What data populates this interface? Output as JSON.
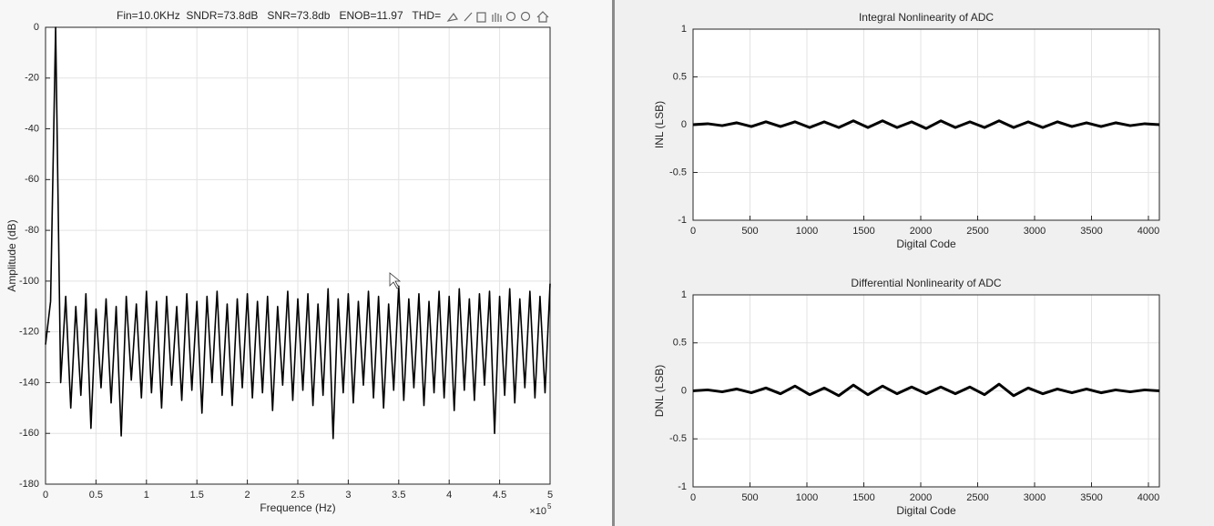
{
  "chart_data": [
    {
      "type": "line",
      "title": "Fin=10.0KHz  SNDR=73.8dB   SNR=73.8db   ENOB=11.97   THD=",
      "x_label": "Frequence (Hz)",
      "y_label": "Amplitude (dB)",
      "x_multiplier": "×10",
      "x_multiplier_exponent": "5",
      "xlim": [
        0,
        500000
      ],
      "xticks": [
        0,
        {
          "value": 50000,
          "label": "0.5"
        },
        {
          "value": 100000,
          "label": "1"
        },
        {
          "value": 150000,
          "label": "1.5"
        },
        {
          "value": 200000,
          "label": "2"
        },
        {
          "value": 250000,
          "label": "2.5"
        },
        {
          "value": 300000,
          "label": "3"
        },
        {
          "value": 350000,
          "label": "3.5"
        },
        {
          "value": 400000,
          "label": "4"
        },
        {
          "value": 450000,
          "label": "4.5"
        },
        {
          "value": 500000,
          "label": "5"
        }
      ],
      "ylim": [
        -180,
        0
      ],
      "yticks": [
        -180,
        -160,
        -140,
        -120,
        -100,
        -80,
        -60,
        -40,
        -20,
        0
      ],
      "grid": true,
      "color": "#000000",
      "x": [
        0,
        5000,
        10000,
        15000,
        20000,
        25000,
        30000,
        35000,
        40000,
        45000,
        50000,
        55000,
        60000,
        65000,
        70000,
        75000,
        80000,
        85000,
        90000,
        95000,
        100000,
        105000,
        110000,
        115000,
        120000,
        125000,
        130000,
        135000,
        140000,
        145000,
        150000,
        155000,
        160000,
        165000,
        170000,
        175000,
        180000,
        185000,
        190000,
        195000,
        200000,
        205000,
        210000,
        215000,
        220000,
        225000,
        230000,
        235000,
        240000,
        245000,
        250000,
        255000,
        260000,
        265000,
        270000,
        275000,
        280000,
        285000,
        290000,
        295000,
        300000,
        305000,
        310000,
        315000,
        320000,
        325000,
        330000,
        335000,
        340000,
        345000,
        350000,
        355000,
        360000,
        365000,
        370000,
        375000,
        380000,
        385000,
        390000,
        395000,
        400000,
        405000,
        410000,
        415000,
        420000,
        425000,
        430000,
        435000,
        440000,
        445000,
        450000,
        455000,
        460000,
        465000,
        470000,
        475000,
        480000,
        485000,
        490000,
        495000,
        500000
      ],
      "values": [
        -125,
        -108,
        0,
        -140,
        -106,
        -150,
        -110,
        -145,
        -105,
        -158,
        -111,
        -142,
        -107,
        -148,
        -110,
        -161,
        -106,
        -139,
        -109,
        -146,
        -104,
        -144,
        -108,
        -150,
        -106,
        -141,
        -110,
        -147,
        -105,
        -143,
        -108,
        -152,
        -106,
        -140,
        -104,
        -145,
        -109,
        -149,
        -107,
        -142,
        -105,
        -146,
        -108,
        -144,
        -106,
        -151,
        -110,
        -141,
        -104,
        -147,
        -107,
        -143,
        -105,
        -149,
        -109,
        -145,
        -103,
        -162,
        -107,
        -144,
        -105,
        -148,
        -108,
        -141,
        -104,
        -146,
        -106,
        -150,
        -109,
        -143,
        -102,
        -147,
        -107,
        -142,
        -105,
        -149,
        -108,
        -144,
        -104,
        -146,
        -106,
        -151,
        -103,
        -143,
        -107,
        -147,
        -105,
        -141,
        -104,
        -160,
        -106,
        -145,
        -103,
        -148,
        -107,
        -142,
        -104,
        -146,
        -106,
        -144,
        -101
      ]
    },
    {
      "type": "line",
      "title": "Integral Nonlinearity of ADC",
      "x_label": "Digital Code",
      "y_label": "INL (LSB)",
      "xlim": [
        0,
        4096
      ],
      "xticks": [
        0,
        500,
        1000,
        1500,
        2000,
        2500,
        3000,
        3500,
        4000
      ],
      "ylim": [
        -1,
        1
      ],
      "yticks": [
        -1,
        -0.5,
        0,
        0.5,
        1
      ],
      "grid": true,
      "color": "#000000",
      "x": [
        0,
        128,
        256,
        384,
        512,
        640,
        768,
        896,
        1024,
        1152,
        1280,
        1408,
        1536,
        1664,
        1792,
        1920,
        2048,
        2176,
        2304,
        2432,
        2560,
        2688,
        2816,
        2944,
        3072,
        3200,
        3328,
        3456,
        3584,
        3712,
        3840,
        3968,
        4096
      ],
      "values": [
        0,
        0.01,
        -0.01,
        0.02,
        -0.02,
        0.03,
        -0.02,
        0.03,
        -0.03,
        0.03,
        -0.03,
        0.04,
        -0.03,
        0.04,
        -0.03,
        0.03,
        -0.04,
        0.04,
        -0.03,
        0.03,
        -0.03,
        0.04,
        -0.03,
        0.03,
        -0.03,
        0.03,
        -0.02,
        0.02,
        -0.02,
        0.02,
        -0.01,
        0.01,
        0
      ]
    },
    {
      "type": "line",
      "title": "Differential Nonlinearity of ADC",
      "x_label": "Digital Code",
      "y_label": "DNL (LSB)",
      "xlim": [
        0,
        4096
      ],
      "xticks": [
        0,
        500,
        1000,
        1500,
        2000,
        2500,
        3000,
        3500,
        4000
      ],
      "ylim": [
        -1,
        1
      ],
      "yticks": [
        -1,
        -0.5,
        0,
        0.5,
        1
      ],
      "grid": true,
      "color": "#000000",
      "x": [
        0,
        128,
        256,
        384,
        512,
        640,
        768,
        896,
        1024,
        1152,
        1280,
        1408,
        1536,
        1664,
        1792,
        1920,
        2048,
        2176,
        2304,
        2432,
        2560,
        2688,
        2816,
        2944,
        3072,
        3200,
        3328,
        3456,
        3584,
        3712,
        3840,
        3968,
        4096
      ],
      "values": [
        0,
        0.01,
        -0.01,
        0.02,
        -0.02,
        0.03,
        -0.03,
        0.05,
        -0.04,
        0.03,
        -0.05,
        0.06,
        -0.04,
        0.05,
        -0.03,
        0.04,
        -0.03,
        0.04,
        -0.03,
        0.04,
        -0.04,
        0.07,
        -0.05,
        0.03,
        -0.03,
        0.02,
        -0.02,
        0.02,
        -0.02,
        0.01,
        -0.01,
        0.01,
        0
      ]
    }
  ]
}
